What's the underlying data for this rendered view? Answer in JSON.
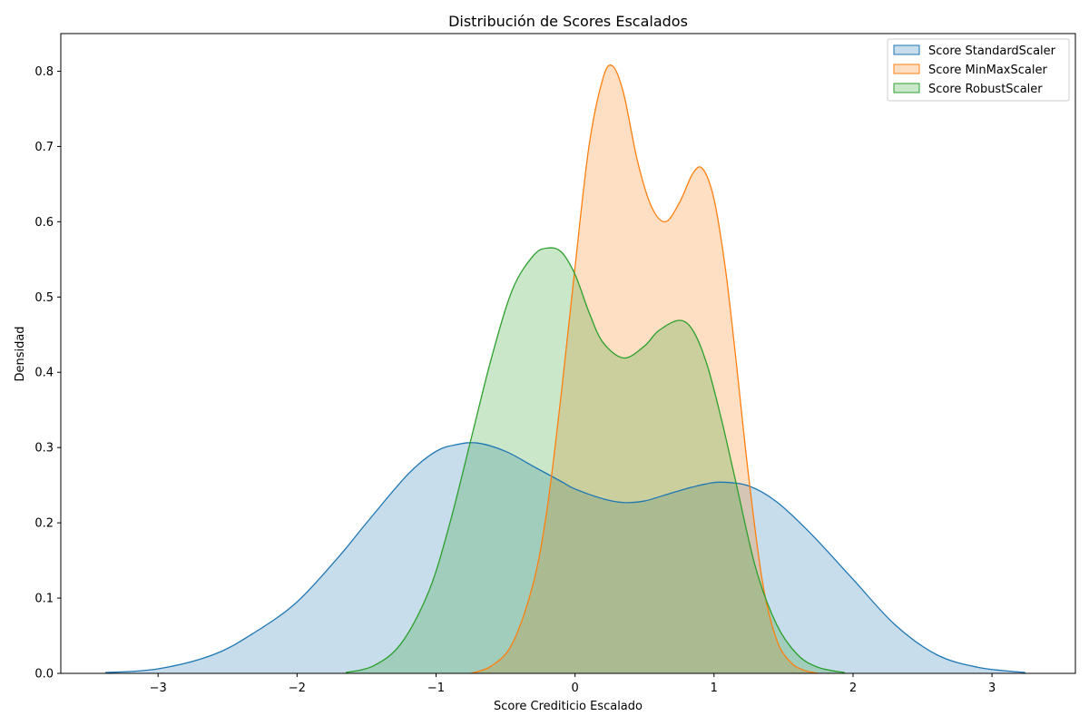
{
  "chart_data": {
    "type": "area",
    "title": "Distribución de Scores Escalados",
    "xlabel": "Score Crediticio Escalado",
    "ylabel": "Densidad",
    "xlim": [
      -3.7,
      3.6
    ],
    "ylim": [
      0,
      0.85
    ],
    "xticks": [
      -3,
      -2,
      -1,
      0,
      1,
      2,
      3
    ],
    "xtick_labels": [
      "−3",
      "−2",
      "−1",
      "0",
      "1",
      "2",
      "3"
    ],
    "yticks": [
      0.0,
      0.1,
      0.2,
      0.3,
      0.4,
      0.5,
      0.6,
      0.7,
      0.8
    ],
    "ytick_labels": [
      "0.0",
      "0.1",
      "0.2",
      "0.3",
      "0.4",
      "0.5",
      "0.6",
      "0.7",
      "0.8"
    ],
    "grid": false,
    "legend_position": "top-right",
    "series": [
      {
        "name": "Score StandardScaler",
        "color": "#1f77b4",
        "x": [
          -3.38,
          -3.0,
          -2.6,
          -2.3,
          -2.0,
          -1.7,
          -1.5,
          -1.2,
          -1.0,
          -0.85,
          -0.7,
          -0.5,
          -0.3,
          -0.1,
          0.0,
          0.2,
          0.35,
          0.5,
          0.7,
          0.9,
          1.05,
          1.25,
          1.45,
          1.7,
          2.0,
          2.3,
          2.6,
          2.9,
          3.24
        ],
        "y": [
          0.001,
          0.006,
          0.025,
          0.055,
          0.095,
          0.155,
          0.2,
          0.265,
          0.295,
          0.304,
          0.306,
          0.295,
          0.275,
          0.255,
          0.245,
          0.232,
          0.227,
          0.229,
          0.24,
          0.25,
          0.254,
          0.249,
          0.228,
          0.185,
          0.125,
          0.065,
          0.025,
          0.008,
          0.001
        ]
      },
      {
        "name": "Score MinMaxScaler",
        "color": "#ff7f0e",
        "x": [
          -0.75,
          -0.6,
          -0.45,
          -0.3,
          -0.2,
          -0.1,
          0.0,
          0.1,
          0.2,
          0.27,
          0.35,
          0.45,
          0.55,
          0.65,
          0.75,
          0.85,
          0.92,
          1.0,
          1.08,
          1.15,
          1.25,
          1.35,
          1.45,
          1.55,
          1.65,
          1.75
        ],
        "y": [
          0.0,
          0.01,
          0.04,
          0.12,
          0.22,
          0.37,
          0.54,
          0.7,
          0.79,
          0.807,
          0.77,
          0.68,
          0.62,
          0.6,
          0.625,
          0.665,
          0.67,
          0.63,
          0.54,
          0.43,
          0.26,
          0.12,
          0.045,
          0.015,
          0.004,
          0.0
        ]
      },
      {
        "name": "Score RobustScaler",
        "color": "#2ca02c",
        "x": [
          -1.65,
          -1.45,
          -1.25,
          -1.05,
          -0.9,
          -0.75,
          -0.6,
          -0.45,
          -0.3,
          -0.2,
          -0.1,
          0.0,
          0.1,
          0.2,
          0.35,
          0.5,
          0.6,
          0.75,
          0.85,
          0.95,
          1.05,
          1.15,
          1.3,
          1.45,
          1.6,
          1.75,
          1.94
        ],
        "y": [
          0.001,
          0.01,
          0.04,
          0.11,
          0.2,
          0.31,
          0.42,
          0.51,
          0.555,
          0.565,
          0.56,
          0.53,
          0.48,
          0.44,
          0.419,
          0.435,
          0.455,
          0.469,
          0.455,
          0.41,
          0.34,
          0.26,
          0.14,
          0.065,
          0.025,
          0.008,
          0.001
        ]
      }
    ]
  }
}
